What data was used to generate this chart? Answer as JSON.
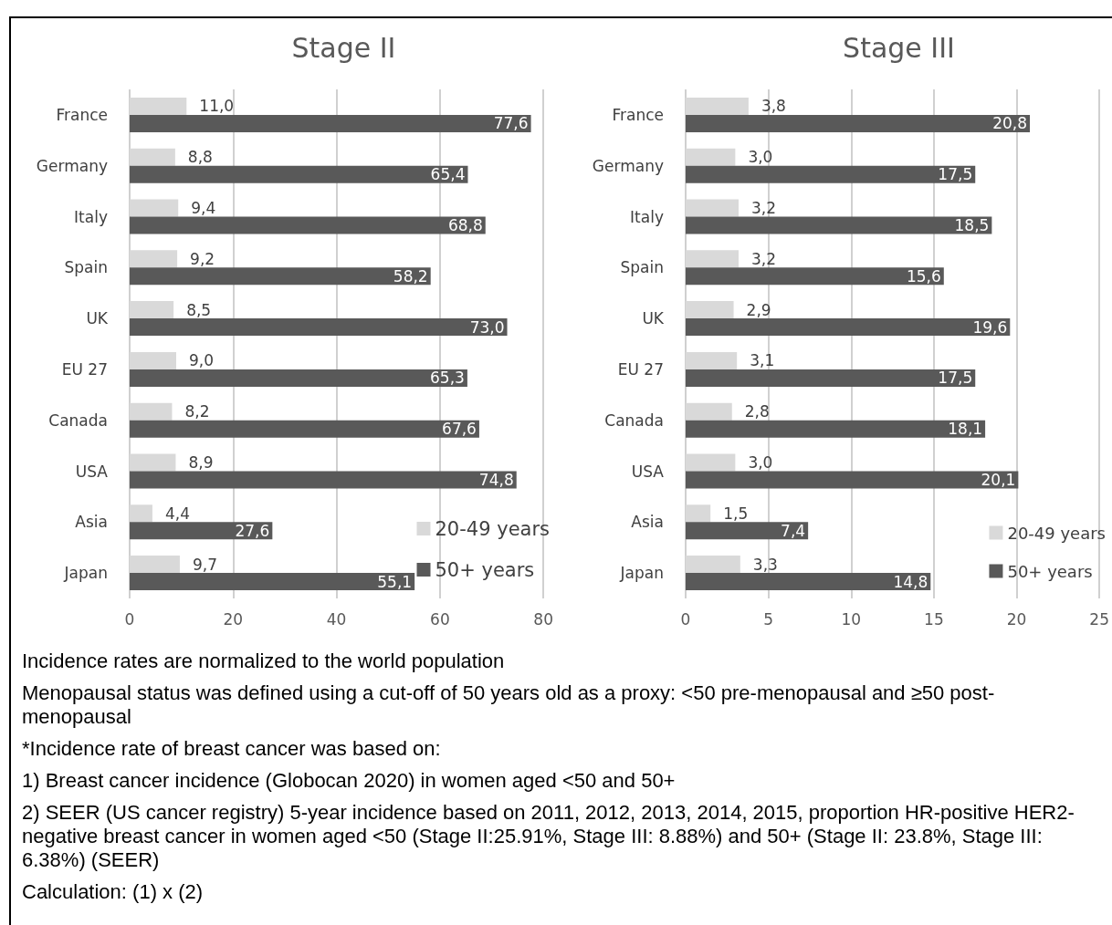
{
  "chart_data": [
    {
      "type": "bar",
      "orientation": "horizontal",
      "title": "Stage II",
      "categories": [
        "France",
        "Germany",
        "Italy",
        "Spain",
        "UK",
        "EU 27",
        "Canada",
        "USA",
        "Asia",
        "Japan"
      ],
      "series": [
        {
          "name": "20-49 years",
          "color": "#d9d9d9",
          "values": [
            11.0,
            8.8,
            9.4,
            9.2,
            8.5,
            9.0,
            8.2,
            8.9,
            4.4,
            9.7
          ],
          "value_labels": [
            "11,0",
            "8,8",
            "9,4",
            "9,2",
            "8,5",
            "9,0",
            "8,2",
            "8,9",
            "4,4",
            "9,7"
          ]
        },
        {
          "name": "50+ years",
          "color": "#595959",
          "values": [
            77.6,
            65.4,
            68.8,
            58.2,
            73.0,
            65.3,
            67.6,
            74.8,
            27.6,
            55.1
          ],
          "value_labels": [
            "77,6",
            "65,4",
            "68,8",
            "58,2",
            "73,0",
            "65,3",
            "67,6",
            "74,8",
            "27,6",
            "55,1"
          ]
        }
      ],
      "xlim": [
        0,
        80
      ],
      "xticks": [
        0,
        20,
        40,
        60,
        80
      ],
      "grid": "x",
      "legend": "bottom right",
      "annotations": [
        "Incidence rates are normalized to the world population",
        "Menopausal status was defined using a cut-off of 50 years old as a proxy: <50 pre-menopausal and ≥50 post-menopausal",
        "*Incidence rate of breast cancer was based on:",
        "1) Breast cancer incidence (Globocan 2020) in women aged <50 and 50+",
        "2) SEER (US cancer registry) 5-year incidence based on 2011, 2012, 2013, 2014, 2015, proportion HR-positive HER2-negative breast cancer in women aged <50 (Stage II:25.91%, Stage III: 8.88%) and 50+ (Stage II: 23.8%, Stage III: 6.38%) (SEER)",
        "Calculation: (1) x (2)"
      ]
    },
    {
      "type": "bar",
      "orientation": "horizontal",
      "title": "Stage III",
      "categories": [
        "France",
        "Germany",
        "Italy",
        "Spain",
        "UK",
        "EU 27",
        "Canada",
        "USA",
        "Asia",
        "Japan"
      ],
      "series": [
        {
          "name": "20-49 years",
          "color": "#d9d9d9",
          "values": [
            3.8,
            3.0,
            3.2,
            3.2,
            2.9,
            3.1,
            2.8,
            3.0,
            1.5,
            3.3
          ],
          "value_labels": [
            "3,8",
            "3,0",
            "3,2",
            "3,2",
            "2,9",
            "3,1",
            "2,8",
            "3,0",
            "1,5",
            "3,3"
          ]
        },
        {
          "name": "50+ years",
          "color": "#595959",
          "values": [
            20.8,
            17.5,
            18.5,
            15.6,
            19.6,
            17.5,
            18.1,
            20.1,
            7.4,
            14.8
          ],
          "value_labels": [
            "20,8",
            "17,5",
            "18,5",
            "15,6",
            "19,6",
            "17,5",
            "18,1",
            "20,1",
            "7,4",
            "14,8"
          ]
        }
      ],
      "xlim": [
        0,
        25
      ],
      "xticks": [
        0,
        5,
        10,
        15,
        20,
        25
      ],
      "grid": "x",
      "legend": "bottom right"
    }
  ]
}
